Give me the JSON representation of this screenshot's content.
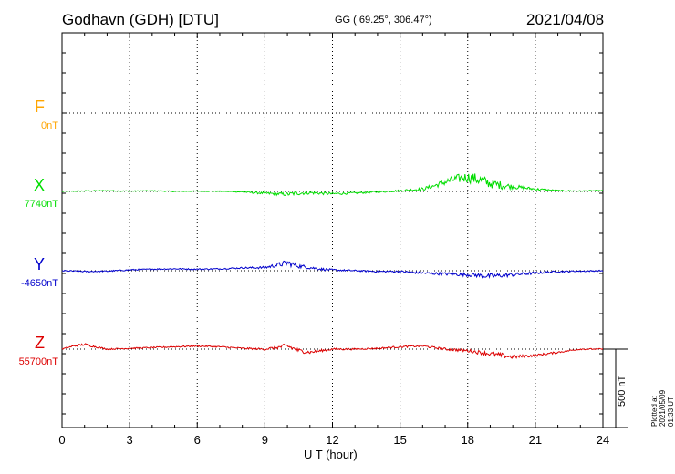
{
  "header": {
    "station": "Godhavn (GDH)  [DTU]",
    "coords": "GG ( 69.25°, 306.47°)",
    "date": "2021/04/08"
  },
  "footer": {
    "xlabel": "U T (hour)",
    "plotted": "Plotted at 2021/05/09 01:33 UT",
    "scale": "500 nT"
  },
  "colors": {
    "F": "#ffa500",
    "X": "#00dd00",
    "Y": "#0000cc",
    "Z": "#dd0000"
  },
  "chart_data": {
    "type": "line",
    "title": "Godhavn (GDH)  [DTU]",
    "xlabel": "U T (hour)",
    "xlim": [
      0,
      24
    ],
    "x_ticks": [
      0,
      3,
      6,
      9,
      12,
      15,
      18,
      21,
      24
    ],
    "x_tick_labels": [
      "0",
      "3",
      "6",
      "9",
      "12",
      "15",
      "18",
      "21",
      "24"
    ],
    "grid": true,
    "scale_bar_nT": 500,
    "channels": [
      {
        "name": "F",
        "baseline": "0nT",
        "color": "#ffa500",
        "x": [],
        "values": []
      },
      {
        "name": "X",
        "baseline": "7740nT",
        "color": "#00dd00",
        "x": [
          0,
          1,
          2,
          3,
          4,
          5,
          6,
          7,
          8,
          9,
          10,
          10.5,
          11,
          12,
          13,
          14,
          15,
          16,
          16.5,
          17,
          17.5,
          18,
          18.5,
          19,
          19.5,
          20,
          21,
          22,
          23,
          24
        ],
        "values": [
          0,
          3,
          5,
          2,
          4,
          0,
          2,
          1,
          -3,
          -12,
          -18,
          -10,
          -8,
          -15,
          -10,
          -3,
          5,
          15,
          35,
          60,
          80,
          90,
          75,
          50,
          40,
          30,
          15,
          5,
          3,
          5
        ],
        "noise": [
          3,
          3,
          3,
          3,
          3,
          3,
          3,
          3,
          4,
          8,
          12,
          14,
          10,
          8,
          6,
          6,
          6,
          10,
          14,
          22,
          28,
          34,
          38,
          30,
          26,
          14,
          8,
          4,
          3,
          3
        ]
      },
      {
        "name": "Y",
        "baseline": "-4650nT",
        "color": "#0000cc",
        "x": [
          0,
          1,
          2,
          3,
          4,
          5,
          6,
          7,
          8,
          9,
          9.5,
          10,
          10.5,
          11,
          11.5,
          12,
          13,
          14,
          15,
          16,
          17,
          18,
          19,
          19.5,
          20,
          21,
          22,
          23,
          24
        ],
        "values": [
          0,
          -5,
          -3,
          5,
          10,
          12,
          10,
          12,
          18,
          20,
          35,
          50,
          30,
          20,
          10,
          5,
          0,
          -5,
          -5,
          -15,
          -20,
          -25,
          -35,
          -30,
          -25,
          -15,
          -5,
          -3,
          0
        ],
        "noise": [
          4,
          4,
          4,
          4,
          4,
          4,
          4,
          4,
          5,
          8,
          14,
          20,
          14,
          10,
          8,
          6,
          5,
          5,
          6,
          8,
          10,
          12,
          16,
          14,
          12,
          8,
          5,
          4,
          4
        ]
      },
      {
        "name": "Z",
        "baseline": "55700nT",
        "color": "#dd0000",
        "x": [
          0,
          0.5,
          1,
          1.5,
          2,
          3,
          4,
          5,
          6,
          7,
          8,
          9,
          9.5,
          10,
          10.5,
          11,
          12,
          13,
          14,
          15,
          16,
          17,
          18,
          19,
          19.5,
          20,
          21,
          22,
          23,
          24
        ],
        "values": [
          0,
          20,
          30,
          15,
          0,
          5,
          10,
          15,
          20,
          15,
          5,
          0,
          10,
          20,
          -10,
          -20,
          0,
          0,
          5,
          15,
          20,
          0,
          -10,
          -30,
          -40,
          -50,
          -40,
          -20,
          0,
          0
        ],
        "noise": [
          4,
          5,
          8,
          6,
          4,
          4,
          4,
          5,
          5,
          5,
          5,
          6,
          10,
          18,
          14,
          10,
          6,
          5,
          5,
          6,
          6,
          8,
          10,
          14,
          16,
          12,
          8,
          6,
          4,
          4
        ]
      }
    ]
  }
}
